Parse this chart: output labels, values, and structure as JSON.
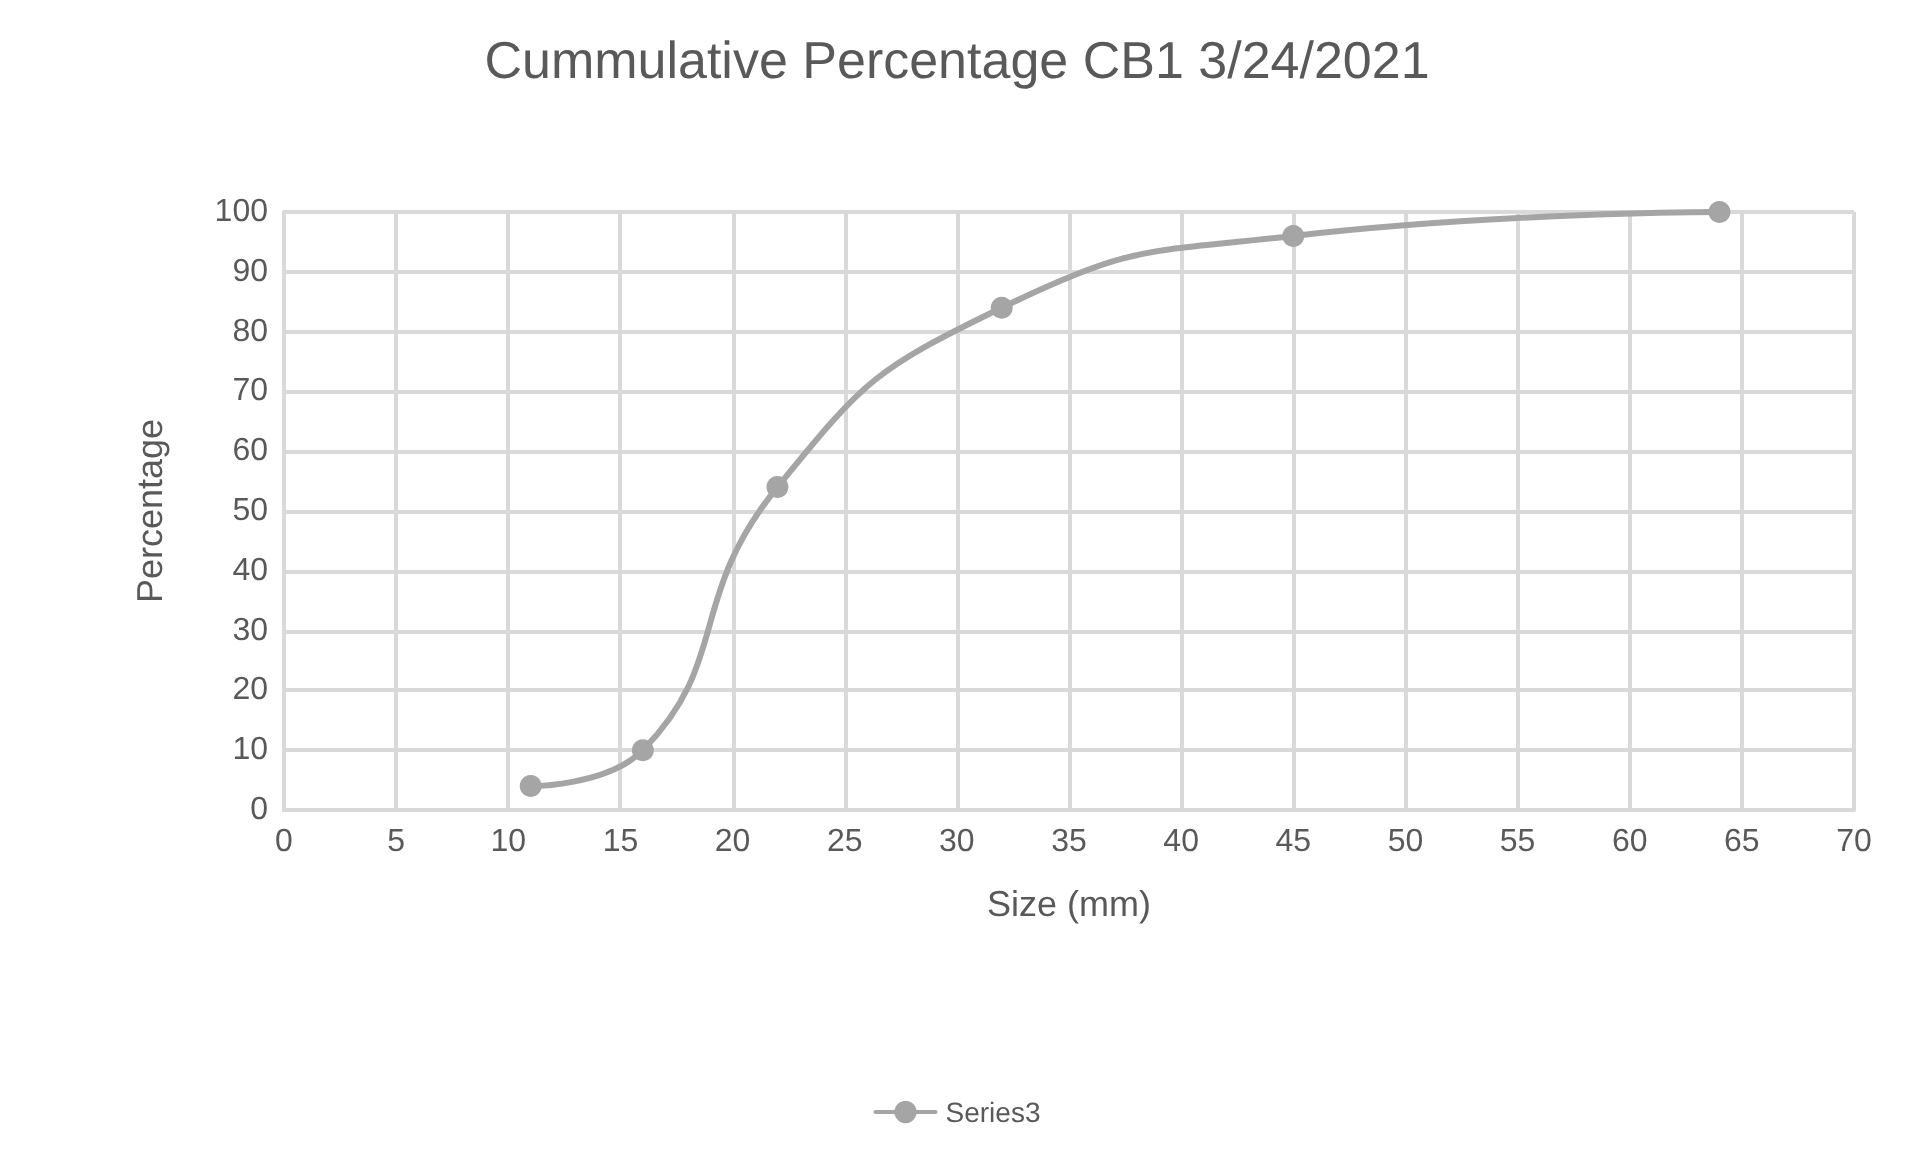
{
  "chart_data": {
    "type": "line",
    "title": "Cummulative Percentage CB1 3/24/2021",
    "xlabel": "Size (mm)",
    "ylabel": "Percentage",
    "x": [
      11,
      16,
      22,
      32,
      45,
      64
    ],
    "series": [
      {
        "name": "Series3",
        "color": "#a5a5a5",
        "values": [
          4,
          10,
          54,
          84,
          96,
          100
        ]
      }
    ],
    "xlim": [
      0,
      70
    ],
    "xticks": [
      0,
      5,
      10,
      15,
      20,
      25,
      30,
      35,
      40,
      45,
      50,
      55,
      60,
      65,
      70
    ],
    "ylim": [
      0,
      100
    ],
    "yticks": [
      0,
      10,
      20,
      30,
      40,
      50,
      60,
      70,
      80,
      90,
      100
    ],
    "grid": true,
    "legend": "bottom",
    "marker": "circle",
    "line_style": "solid"
  }
}
